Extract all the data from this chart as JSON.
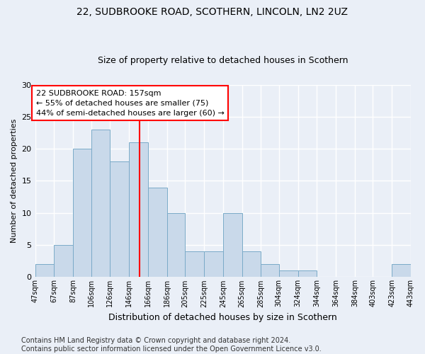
{
  "title1": "22, SUDBROOKE ROAD, SCOTHERN, LINCOLN, LN2 2UZ",
  "title2": "Size of property relative to detached houses in Scothern",
  "xlabel": "Distribution of detached houses by size in Scothern",
  "ylabel": "Number of detached properties",
  "bar_edges": [
    47,
    67,
    87,
    106,
    126,
    146,
    166,
    186,
    205,
    225,
    245,
    265,
    285,
    304,
    324,
    344,
    364,
    384,
    403,
    423,
    443
  ],
  "bar_heights": [
    2,
    5,
    20,
    23,
    18,
    21,
    14,
    10,
    4,
    4,
    10,
    4,
    2,
    1,
    1,
    0,
    0,
    0,
    0,
    2
  ],
  "bar_color": "#c9d9ea",
  "bar_edgecolor": "#7aaac8",
  "vline_x": 157,
  "vline_color": "red",
  "annotation_text": "22 SUDBROOKE ROAD: 157sqm\n← 55% of detached houses are smaller (75)\n44% of semi-detached houses are larger (60) →",
  "annotation_box_color": "white",
  "annotation_box_edgecolor": "red",
  "ylim": [
    0,
    30
  ],
  "yticks": [
    0,
    5,
    10,
    15,
    20,
    25,
    30
  ],
  "tick_labels": [
    "47sqm",
    "67sqm",
    "87sqm",
    "106sqm",
    "126sqm",
    "146sqm",
    "166sqm",
    "186sqm",
    "205sqm",
    "225sqm",
    "245sqm",
    "265sqm",
    "285sqm",
    "304sqm",
    "324sqm",
    "344sqm",
    "364sqm",
    "384sqm",
    "403sqm",
    "423sqm",
    "443sqm"
  ],
  "footer": "Contains HM Land Registry data © Crown copyright and database right 2024.\nContains public sector information licensed under the Open Government Licence v3.0.",
  "bg_color": "#eaeff7",
  "plot_bg_color": "#eaeff7",
  "title1_fontsize": 10,
  "title2_fontsize": 9,
  "annotation_fontsize": 8,
  "footer_fontsize": 7,
  "ylabel_fontsize": 8,
  "xlabel_fontsize": 9
}
